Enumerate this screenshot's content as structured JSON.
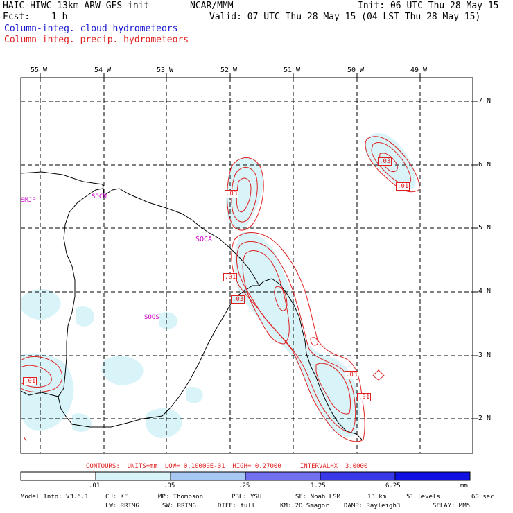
{
  "header": {
    "title": "HAIC-HIWC 13km ARW-GFS init",
    "center": "NCAR/MMM",
    "init": "Init: 06 UTC Thu 28 May 15",
    "fcst_label": "Fcst:",
    "fcst_value": "1 h",
    "valid": "Valid: 07 UTC Thu 28 May 15 (04 LST Thu 28 May 15)",
    "field1": "Column-integ. cloud hydrometeors",
    "field2": "Column-integ. precip. hydrometeors",
    "field1_color": "#1a1ad0",
    "field2_color": "#e02020"
  },
  "map": {
    "lon_labels": [
      "55 W",
      "54 W",
      "53 W",
      "52 W",
      "51 W",
      "50 W",
      "49 W"
    ],
    "lat_labels": [
      "7 N",
      "6 N",
      "5 N",
      "4 N",
      "3 N",
      "2 N"
    ],
    "stations": [
      "SMJP",
      "SOCM",
      "SOCA",
      "SOOS"
    ],
    "contour_labels": [
      ".03",
      ".03",
      ".01",
      ".03",
      ".03",
      ".01",
      ".01",
      ".01"
    ],
    "cloud_fill_color": "#d8f4f8",
    "contour_color": "#e02020",
    "station_color": "#cc00cc"
  },
  "legend": {
    "contours_text": "CONTOURS:  UNITS=mm  LOW= 0.10000E-01  HIGH= 0.27000     INTERVAL=X  3.0000",
    "ticks": [
      ".01",
      ".05",
      ".25",
      "1.25",
      "6.25"
    ],
    "unit": "mm",
    "colors": [
      "#ffffff",
      "#d8f4f8",
      "#a8c8f4",
      "#7070f0",
      "#3838e8",
      "#1010e0"
    ]
  },
  "footer": {
    "line1": [
      "Model Info: V3.6.1",
      "CU: KF",
      "MP: Thompson",
      "PBL: YSU",
      "SF: Noah LSM",
      "13 km",
      "51 levels",
      "60 sec"
    ],
    "line2": [
      "LW: RRTMG",
      "SW: RRTMG",
      "DIFF: full",
      "KM: 2D Smagor",
      "DAMP: Rayleigh3",
      "SFLAY: MM5"
    ]
  }
}
